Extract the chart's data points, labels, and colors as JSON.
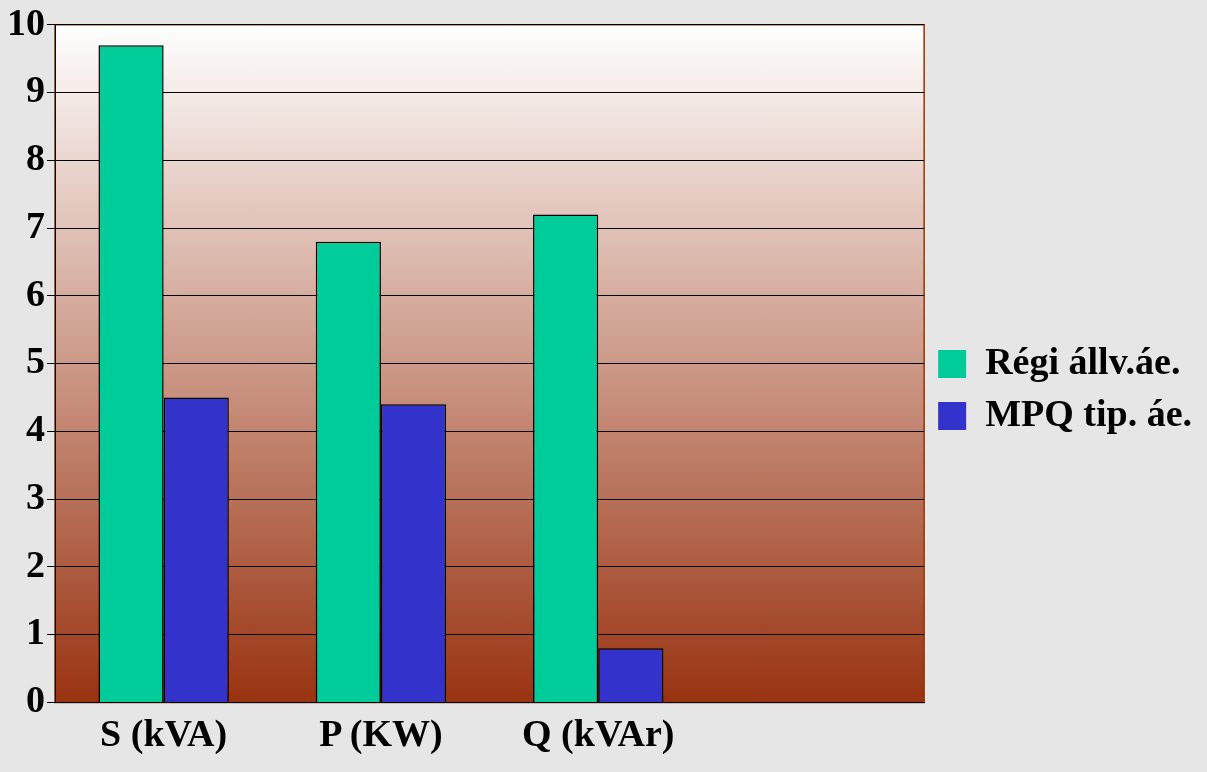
{
  "chart_data": {
    "type": "bar",
    "categories": [
      "S (kVA)",
      "P (KW)",
      "Q (kVAr)",
      null
    ],
    "series": [
      {
        "name": "Régi állv.áe.",
        "color": "#00cc99",
        "values": [
          9.7,
          6.8,
          7.2,
          null
        ]
      },
      {
        "name": "MPQ tip. áe.",
        "color": "#3333cc",
        "values": [
          4.5,
          4.4,
          0.8,
          null
        ]
      }
    ],
    "ylim": [
      0,
      10
    ],
    "yticks": [
      0,
      1,
      2,
      3,
      4,
      5,
      6,
      7,
      8,
      9,
      10
    ],
    "grid": "y",
    "legend": "right"
  }
}
